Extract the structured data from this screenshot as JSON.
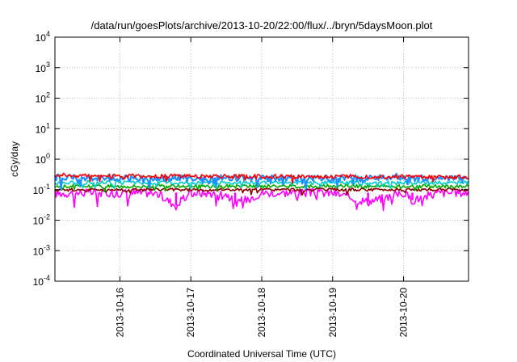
{
  "chart_data": {
    "type": "line",
    "title": "/data/run/goesPlots/archive/2013-10-20/22:00/flux/../bryn/5daysMoon.plot",
    "xlabel": "Coordinated Universal Time (UTC)",
    "ylabel": "cGy/day",
    "y_scale": "log",
    "ylim": [
      0.0001,
      10000
    ],
    "xlim": [
      "2013-10-15T02:00",
      "2013-10-20T22:00"
    ],
    "grid": true,
    "y_ticks": [
      {
        "base": "10",
        "exp": "-4",
        "value": 0.0001
      },
      {
        "base": "10",
        "exp": "-3",
        "value": 0.001
      },
      {
        "base": "10",
        "exp": "-2",
        "value": 0.01
      },
      {
        "base": "10",
        "exp": "-1",
        "value": 0.1
      },
      {
        "base": "10",
        "exp": "0",
        "value": 1
      },
      {
        "base": "10",
        "exp": "1",
        "value": 10
      },
      {
        "base": "10",
        "exp": "2",
        "value": 100
      },
      {
        "base": "10",
        "exp": "3",
        "value": 1000
      },
      {
        "base": "10",
        "exp": "4",
        "value": 10000
      }
    ],
    "x_ticks": [
      {
        "label": "2013-10-16",
        "value": "2013-10-16T00:00"
      },
      {
        "label": "2013-10-17",
        "value": "2013-10-17T00:00"
      },
      {
        "label": "2013-10-18",
        "value": "2013-10-18T00:00"
      },
      {
        "label": "2013-10-19",
        "value": "2013-10-19T00:00"
      },
      {
        "label": "2013-10-20",
        "value": "2013-10-20T00:00"
      }
    ],
    "series": [
      {
        "color": "#ff00ff",
        "x": [
          "2013-10-15T02:00",
          "2013-10-15T12:00",
          "2013-10-16T00:00",
          "2013-10-16T12:00",
          "2013-10-16T19:00",
          "2013-10-17T00:00",
          "2013-10-17T12:00",
          "2013-10-17T15:00",
          "2013-10-18T00:00",
          "2013-10-18T12:00",
          "2013-10-19T00:00",
          "2013-10-19T12:00",
          "2013-10-20T00:00",
          "2013-10-20T03:00",
          "2013-10-20T12:00",
          "2013-10-20T22:00"
        ],
        "values": [
          0.075,
          0.08,
          0.078,
          0.08,
          0.03,
          0.078,
          0.075,
          0.035,
          0.078,
          0.08,
          0.078,
          0.04,
          0.078,
          0.045,
          0.078,
          0.08
        ]
      },
      {
        "color": "#8b0000",
        "x": [
          "2013-10-15T02:00",
          "2013-10-16T00:00",
          "2013-10-17T00:00",
          "2013-10-18T00:00",
          "2013-10-19T00:00",
          "2013-10-20T00:00",
          "2013-10-20T22:00"
        ],
        "values": [
          0.1,
          0.1,
          0.1,
          0.1,
          0.1,
          0.1,
          0.1
        ]
      },
      {
        "color": "#00aa00",
        "x": [
          "2013-10-15T02:00",
          "2013-10-16T00:00",
          "2013-10-17T00:00",
          "2013-10-18T00:00",
          "2013-10-19T00:00",
          "2013-10-20T00:00",
          "2013-10-20T22:00"
        ],
        "values": [
          0.13,
          0.13,
          0.13,
          0.13,
          0.13,
          0.13,
          0.13
        ]
      },
      {
        "color": "#00cccc",
        "x": [
          "2013-10-15T02:00",
          "2013-10-16T00:00",
          "2013-10-17T00:00",
          "2013-10-18T00:00",
          "2013-10-19T00:00",
          "2013-10-20T00:00",
          "2013-10-20T22:00"
        ],
        "values": [
          0.17,
          0.17,
          0.17,
          0.17,
          0.17,
          0.17,
          0.17
        ]
      },
      {
        "color": "#1e90ff",
        "x": [
          "2013-10-15T02:00",
          "2013-10-16T00:00",
          "2013-10-17T00:00",
          "2013-10-18T00:00",
          "2013-10-19T00:00",
          "2013-10-20T00:00",
          "2013-10-20T22:00"
        ],
        "values": [
          0.25,
          0.24,
          0.24,
          0.24,
          0.24,
          0.24,
          0.23
        ]
      },
      {
        "color": "#ff0000",
        "x": [
          "2013-10-15T02:00",
          "2013-10-16T00:00",
          "2013-10-17T00:00",
          "2013-10-18T00:00",
          "2013-10-19T00:00",
          "2013-10-20T00:00",
          "2013-10-20T22:00"
        ],
        "values": [
          0.3,
          0.28,
          0.28,
          0.27,
          0.27,
          0.27,
          0.26
        ]
      }
    ]
  }
}
